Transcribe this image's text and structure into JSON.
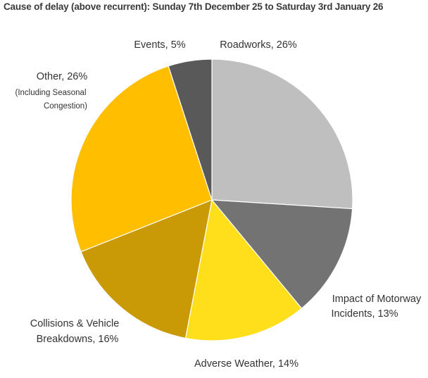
{
  "chart_data": {
    "type": "pie",
    "title": "Cause of delay (above recurrent): Sunday 7th December 25 to Saturday 3rd January 26",
    "slices": [
      {
        "label": "Roadworks",
        "value": 26,
        "display": "Roadworks, 26%",
        "color": "#bfbfbf"
      },
      {
        "label": "Impact of Motorway Incidents",
        "value": 13,
        "display_lines": [
          "Impact of Motorway",
          "Incidents, 13%"
        ],
        "color": "#737373"
      },
      {
        "label": "Adverse Weather",
        "value": 14,
        "display": "Adverse Weather, 14%",
        "color": "#ffdf1b"
      },
      {
        "label": "Collisions & Vehicle Breakdowns",
        "value": 16,
        "display_lines": [
          "Collisions & Vehicle",
          "Breakdowns, 16%"
        ],
        "color": "#c99a06"
      },
      {
        "label": "Other",
        "value": 26,
        "display": "Other, 26%",
        "note_lines": [
          "(Including Seasonal",
          "Congestion)"
        ],
        "color": "#ffbf00"
      },
      {
        "label": "Events",
        "value": 5,
        "display": "Events, 5%",
        "color": "#595959"
      }
    ],
    "legend": "none",
    "start_angle": "12 o'clock",
    "direction": "clockwise"
  }
}
